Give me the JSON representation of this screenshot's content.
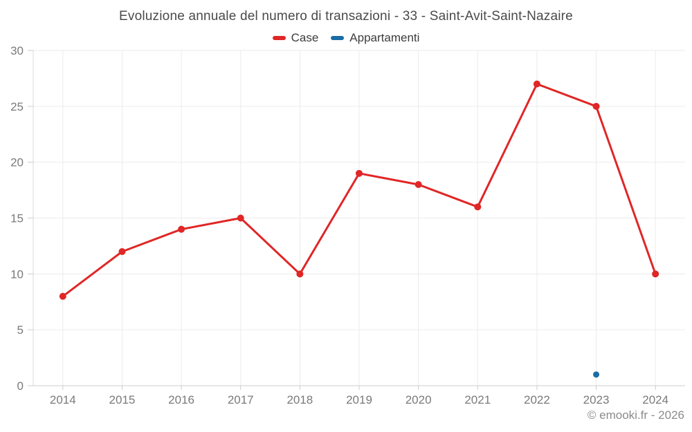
{
  "header": {
    "title": "Evoluzione annuale del numero di transazioni - 33 - Saint-Avit-Saint-Nazaire"
  },
  "legend": {
    "items": [
      {
        "label": "Case",
        "color": "#e02626"
      },
      {
        "label": "Appartamenti",
        "color": "#1a6ca6"
      }
    ]
  },
  "footer": {
    "credit": "© emooki.fr - 2026"
  },
  "chart_data": {
    "type": "line",
    "title": "Evoluzione annuale del numero di transazioni - 33 - Saint-Avit-Saint-Nazaire",
    "x": [
      "2014",
      "2015",
      "2016",
      "2017",
      "2018",
      "2019",
      "2020",
      "2021",
      "2022",
      "2023",
      "2024"
    ],
    "series": [
      {
        "name": "Case",
        "color": "#e02626",
        "point_radius": 5,
        "values": [
          8,
          12,
          14,
          15,
          10,
          19,
          18,
          16,
          27,
          25,
          10
        ]
      },
      {
        "name": "Appartamenti",
        "color": "#1a6ca6",
        "point_radius": 4.5,
        "values": [
          null,
          null,
          null,
          null,
          null,
          null,
          null,
          null,
          null,
          1,
          null
        ]
      }
    ],
    "ylim": [
      0,
      30
    ],
    "yticks": [
      0,
      5,
      10,
      15,
      20,
      25,
      30
    ],
    "grid": true,
    "legend_position": "top",
    "xlabel": "",
    "ylabel": ""
  },
  "style": {
    "grid_color": "#ebebeb",
    "axis_line_color": "#d9d9d9",
    "bottom_axis_color": "#cccccc",
    "tick_color": "#cccccc",
    "axis_label_color": "#7a7a7a"
  }
}
